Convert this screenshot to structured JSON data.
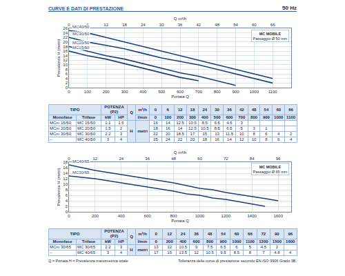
{
  "header": {
    "title": "CURVE E DATI DI PRESTAZIONE",
    "subtitle": "50 Hz"
  },
  "chart_data": [
    {
      "type": "line",
      "x_label": "Portata Q",
      "x2_label": "Q m³/h",
      "y_label": "Prevalenza H (metri)",
      "x": [
        0,
        100,
        200,
        300,
        400,
        500,
        600,
        700,
        800,
        900,
        1000,
        1100
      ],
      "xlim": [
        0,
        1200
      ],
      "xticks": [
        0,
        100,
        200,
        300,
        400,
        500,
        600,
        700,
        800,
        900,
        1000,
        1100
      ],
      "x2lim": [
        0,
        72
      ],
      "x2ticks": [
        0,
        6,
        12,
        18,
        24,
        30,
        36,
        42,
        48,
        54,
        60,
        66
      ],
      "ylim": [
        0,
        26
      ],
      "yticks": [
        0,
        2,
        4,
        6,
        8,
        10,
        12,
        14,
        16,
        18,
        20,
        22,
        24,
        26
      ],
      "grid": true,
      "series": [
        {
          "name": "MC40/50",
          "color": "#1b3f7a",
          "values": [
            25,
            24,
            22,
            20,
            18,
            16,
            14,
            12,
            10,
            8,
            6,
            4
          ]
        },
        {
          "name": "MC30/50",
          "color": "#1b3f7a",
          "values": [
            22,
            20,
            18.5,
            17,
            15,
            13,
            11.5,
            10,
            8,
            6,
            4,
            2
          ]
        },
        {
          "name": "MC20/50",
          "color": "#1b3f7a",
          "values": [
            18,
            16,
            14,
            12.5,
            10.5,
            8.5,
            6.5,
            5,
            3,
            1,
            null,
            null
          ]
        },
        {
          "name": "MC15/50",
          "color": "#1b3f7a",
          "values": [
            16,
            14,
            12.5,
            10.5,
            8.5,
            6.5,
            4.5,
            3,
            null,
            null,
            null,
            null
          ]
        }
      ],
      "badge": {
        "title": "MC MOBILE",
        "note": "Passaggio Ø 50 mm"
      }
    },
    {
      "type": "line",
      "x_label": "Portata Q",
      "x2_label": "Q m³/h",
      "y_label": "Prevalenza H (metri)",
      "x": [
        0,
        200,
        400,
        600,
        800,
        900,
        1000,
        1100,
        1200,
        1500,
        1600
      ],
      "xlim": [
        0,
        1700
      ],
      "xticks": [
        0,
        200,
        400,
        600,
        800,
        1000,
        1200,
        1400,
        1600
      ],
      "x2lim": [
        0,
        102
      ],
      "x2ticks": [
        0,
        12,
        24,
        36,
        48,
        60,
        72,
        84,
        96
      ],
      "ylim": [
        0,
        18
      ],
      "yticks": [
        0,
        2,
        4,
        6,
        8,
        10,
        12,
        14,
        16,
        18
      ],
      "grid": true,
      "series": [
        {
          "name": "MC40/65",
          "color": "#1b3f7a",
          "values": [
            17,
            15,
            13.5,
            12,
            10.5,
            9.5,
            8.5,
            8,
            7,
            4.8,
            4
          ]
        },
        {
          "name": "MC30/65",
          "color": "#1b3f7a",
          "values": [
            13,
            12,
            10.5,
            9,
            7.5,
            6.5,
            6,
            5,
            4.5,
            2,
            null
          ]
        }
      ],
      "badge": {
        "title": "MC MOBILE",
        "note": "Passaggio Ø 65 mm"
      }
    }
  ],
  "tables": [
    {
      "header": {
        "tipo": "TIPO",
        "potenza": "POTENZA (P2)",
        "monofase": "Monofase",
        "trifase": "Trifase",
        "kw": "kW",
        "hp": "HP",
        "q": "Q",
        "q_units": [
          "m³/h",
          "l/min"
        ],
        "h": "H",
        "h_unit": "metri"
      },
      "q_m3h": [
        0,
        6,
        12,
        18,
        24,
        30,
        36,
        42,
        48,
        54,
        60,
        66
      ],
      "q_lmin": [
        0,
        100,
        200,
        300,
        400,
        500,
        600,
        700,
        800,
        900,
        1000,
        1100
      ],
      "rows": [
        {
          "monofase": "MCm 15/50",
          "trifase": "MC 15/50",
          "kw": 1.1,
          "hp": 1.5,
          "h": [
            16,
            14,
            12.5,
            10.5,
            8.5,
            6.5,
            4.5,
            3,
            null,
            null,
            null,
            null
          ]
        },
        {
          "monofase": "MCm 20/50",
          "trifase": "MC 20/50",
          "kw": 1.5,
          "hp": 2,
          "h": [
            18,
            16,
            14,
            12.5,
            10.5,
            8.5,
            6.5,
            5,
            3,
            1,
            null,
            null
          ]
        },
        {
          "monofase": "MCm 30/50",
          "trifase": "MC 30/50",
          "kw": 2.2,
          "hp": 3,
          "h": [
            22,
            20,
            18.5,
            17,
            15,
            13,
            11.5,
            10,
            8,
            6,
            4,
            2
          ]
        },
        {
          "monofase": "--",
          "trifase": "MC 40/50",
          "kw": 3,
          "hp": 4,
          "h": [
            25,
            24,
            22,
            20,
            18,
            16,
            14,
            12,
            10,
            8,
            6,
            4
          ]
        }
      ]
    },
    {
      "header": {
        "tipo": "TIPO",
        "potenza": "POTENZA (P2)",
        "monofase": "Monofase",
        "trifase": "Trifase",
        "kw": "kW",
        "hp": "HP",
        "q": "Q",
        "q_units": [
          "m³/h",
          "l/min"
        ],
        "h": "H",
        "h_unit": "metri"
      },
      "q_m3h": [
        0,
        12,
        24,
        36,
        48,
        54,
        60,
        66,
        72,
        90,
        96
      ],
      "q_lmin": [
        0,
        200,
        400,
        600,
        800,
        900,
        1000,
        1100,
        1200,
        1500,
        1600
      ],
      "rows": [
        {
          "monofase": "MCm 30/65",
          "trifase": "MC 30/65",
          "kw": 2.2,
          "hp": 3,
          "h": [
            13,
            12,
            10.5,
            9,
            7.5,
            6.5,
            6,
            5,
            4.5,
            2,
            null
          ]
        },
        {
          "monofase": "--",
          "trifase": "MC 40/65",
          "kw": 3,
          "hp": 4,
          "h": [
            17,
            15,
            13.5,
            12,
            10.5,
            9.5,
            8.5,
            8,
            7,
            4.8,
            4
          ]
        }
      ]
    }
  ],
  "footer": {
    "left": "Q = Portata  H = Prevalenza manometrica totale",
    "right": "Tolleranza delle curve di prestazione secondo EN ISO 9906 Grado 3B."
  }
}
